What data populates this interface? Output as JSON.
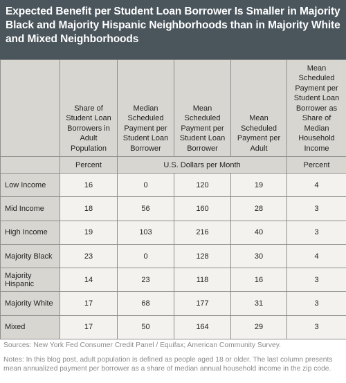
{
  "title": "Expected Benefit per Student Loan Borrower Is Smaller in Majority Black and Majority Hispanic Neighborhoods than in Majority White and Mixed Neighborhoods",
  "column_headers": [
    "",
    "Share of Student Loan Borrowers in Adult Population",
    "Median Scheduled Payment per Student Loan Borrower",
    "Mean Scheduled Payment per Student Loan Borrower",
    "Mean Scheduled Payment per Adult",
    "Mean Scheduled Payment per Student Loan Borrower as Share of Median Household Income"
  ],
  "unit_row": {
    "percent_left": "Percent",
    "dollars": "U.S. Dollars per Month",
    "percent_right": "Percent"
  },
  "chart_data": {
    "type": "table",
    "title": "Expected Benefit per Student Loan Borrower Is Smaller in Majority Black and Majority Hispanic Neighborhoods than in Majority White and Mixed Neighborhoods",
    "rows": [
      {
        "label": "Low Income",
        "values": [
          "16",
          "0",
          "120",
          "19",
          "4"
        ]
      },
      {
        "label": "Mid Income",
        "values": [
          "18",
          "56",
          "160",
          "28",
          "3"
        ]
      },
      {
        "label": "High Income",
        "values": [
          "19",
          "103",
          "216",
          "40",
          "3"
        ]
      },
      {
        "label": "Majority Black",
        "values": [
          "23",
          "0",
          "128",
          "30",
          "4"
        ]
      },
      {
        "label": "Majority Hispanic",
        "values": [
          "14",
          "23",
          "118",
          "16",
          "3"
        ]
      },
      {
        "label": "Majority White",
        "values": [
          "17",
          "68",
          "177",
          "31",
          "3"
        ]
      },
      {
        "label": "Mixed",
        "values": [
          "17",
          "50",
          "164",
          "29",
          "3"
        ]
      }
    ]
  },
  "sources": "Sources: New York Fed Consumer Credit Panel / Equifax; American Community Survey.",
  "notes": "Notes: In this blog post, adult population is defined as people aged 18 or older. The last column presents mean annualized payment per borrower as a share of median annual household income in the zip code."
}
